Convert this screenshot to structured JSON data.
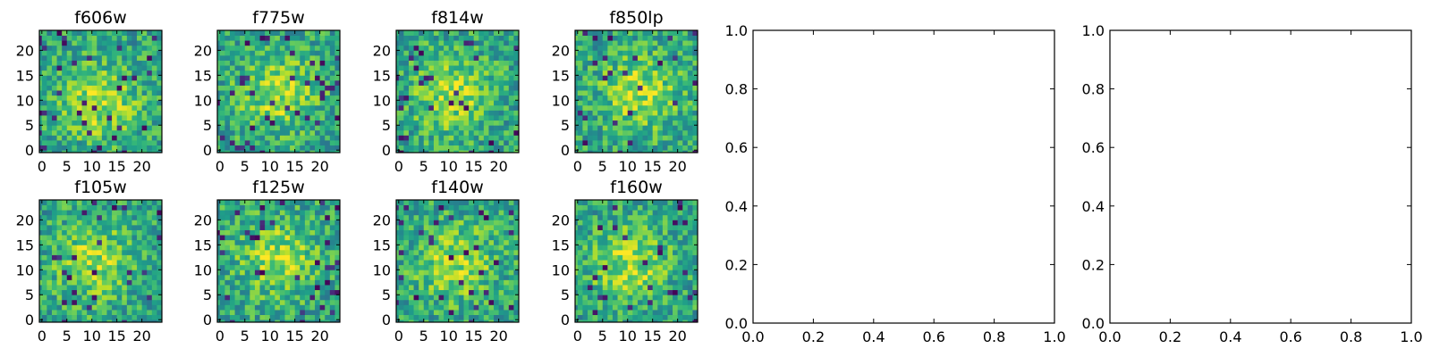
{
  "chart_data": [
    {
      "type": "heatmap",
      "title": "f606w",
      "size": 25,
      "seed": 11,
      "blob": [
        12,
        10
      ],
      "x_ticks": [
        "0",
        "5",
        "10",
        "15",
        "20"
      ],
      "y_ticks": [
        "0",
        "5",
        "10",
        "15",
        "20"
      ]
    },
    {
      "type": "heatmap",
      "title": "f775w",
      "size": 25,
      "seed": 23,
      "blob": [
        12,
        12
      ],
      "x_ticks": [
        "0",
        "5",
        "10",
        "15",
        "20"
      ],
      "y_ticks": [
        "0",
        "5",
        "10",
        "15",
        "20"
      ]
    },
    {
      "type": "heatmap",
      "title": "f814w",
      "size": 25,
      "seed": 37,
      "blob": [
        11,
        12
      ],
      "x_ticks": [
        "0",
        "5",
        "10",
        "15",
        "20"
      ],
      "y_ticks": [
        "0",
        "5",
        "10",
        "15",
        "20"
      ]
    },
    {
      "type": "heatmap",
      "title": "f850lp",
      "size": 25,
      "seed": 41,
      "blob": [
        13,
        12
      ],
      "x_ticks": [
        "0",
        "5",
        "10",
        "15",
        "20"
      ],
      "y_ticks": [
        "0",
        "5",
        "10",
        "15",
        "20"
      ]
    },
    {
      "type": "heatmap",
      "title": "f105w",
      "size": 25,
      "seed": 53,
      "blob": [
        11,
        12
      ],
      "x_ticks": [
        "0",
        "5",
        "10",
        "15",
        "20"
      ],
      "y_ticks": [
        "0",
        "5",
        "10",
        "15",
        "20"
      ]
    },
    {
      "type": "heatmap",
      "title": "f125w",
      "size": 25,
      "seed": 67,
      "blob": [
        12,
        13
      ],
      "x_ticks": [
        "0",
        "5",
        "10",
        "15",
        "20"
      ],
      "y_ticks": [
        "0",
        "5",
        "10",
        "15",
        "20"
      ]
    },
    {
      "type": "heatmap",
      "title": "f140w",
      "size": 25,
      "seed": 71,
      "blob": [
        12,
        12
      ],
      "x_ticks": [
        "0",
        "5",
        "10",
        "15",
        "20"
      ],
      "y_ticks": [
        "0",
        "5",
        "10",
        "15",
        "20"
      ]
    },
    {
      "type": "heatmap",
      "title": "f160w",
      "size": 25,
      "seed": 89,
      "blob": [
        11,
        12
      ],
      "x_ticks": [
        "0",
        "5",
        "10",
        "15",
        "20"
      ],
      "y_ticks": [
        "0",
        "5",
        "10",
        "15",
        "20"
      ]
    },
    {
      "type": "scatter",
      "title": "",
      "xlim": [
        0.0,
        1.0
      ],
      "ylim": [
        0.0,
        1.0
      ],
      "x_ticks": [
        "0.0",
        "0.2",
        "0.4",
        "0.6",
        "0.8",
        "1.0"
      ],
      "y_ticks": [
        "0.0",
        "0.2",
        "0.4",
        "0.6",
        "0.8",
        "1.0"
      ],
      "points": []
    },
    {
      "type": "scatter",
      "title": "",
      "xlim": [
        0.0,
        1.0
      ],
      "ylim": [
        0.0,
        1.0
      ],
      "x_ticks": [
        "0.0",
        "0.2",
        "0.4",
        "0.6",
        "0.8",
        "1.0"
      ],
      "y_ticks": [
        "0.0",
        "0.2",
        "0.4",
        "0.6",
        "0.8",
        "1.0"
      ],
      "points": []
    }
  ]
}
